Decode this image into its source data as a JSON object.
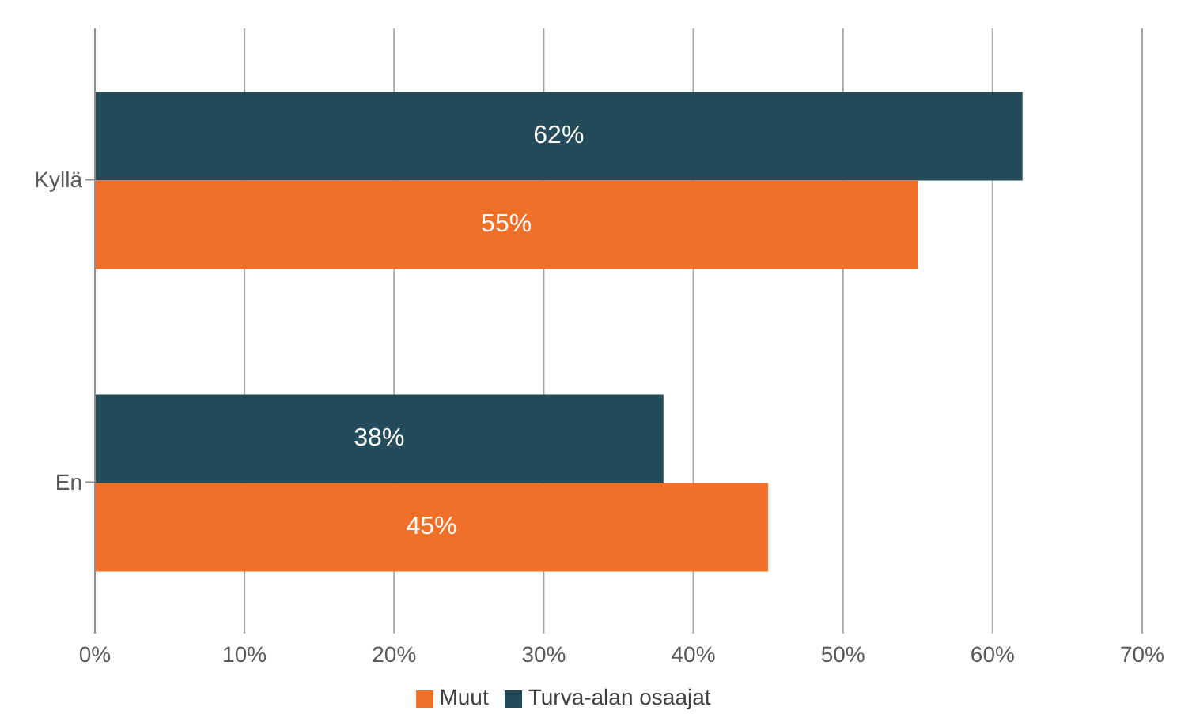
{
  "chart_data": {
    "type": "bar",
    "orientation": "horizontal",
    "categories": [
      "Kyllä",
      "En"
    ],
    "series": [
      {
        "name": "Turva-alan osaajat",
        "color": "#234b5a",
        "values": [
          62,
          38
        ],
        "value_labels": [
          "62%",
          "38%"
        ]
      },
      {
        "name": "Muut",
        "color": "#f07028",
        "values": [
          55,
          45
        ],
        "value_labels": [
          "55%",
          "45%"
        ]
      }
    ],
    "xlim": [
      0,
      70
    ],
    "xticks": [
      {
        "value": 0,
        "label": "0%"
      },
      {
        "value": 10,
        "label": "10%"
      },
      {
        "value": 20,
        "label": "20%"
      },
      {
        "value": 30,
        "label": "30%"
      },
      {
        "value": 40,
        "label": "40%"
      },
      {
        "value": 50,
        "label": "50%"
      },
      {
        "value": 60,
        "label": "60%"
      },
      {
        "value": 70,
        "label": "70%"
      }
    ],
    "grid": "x",
    "legend": "bottom"
  }
}
